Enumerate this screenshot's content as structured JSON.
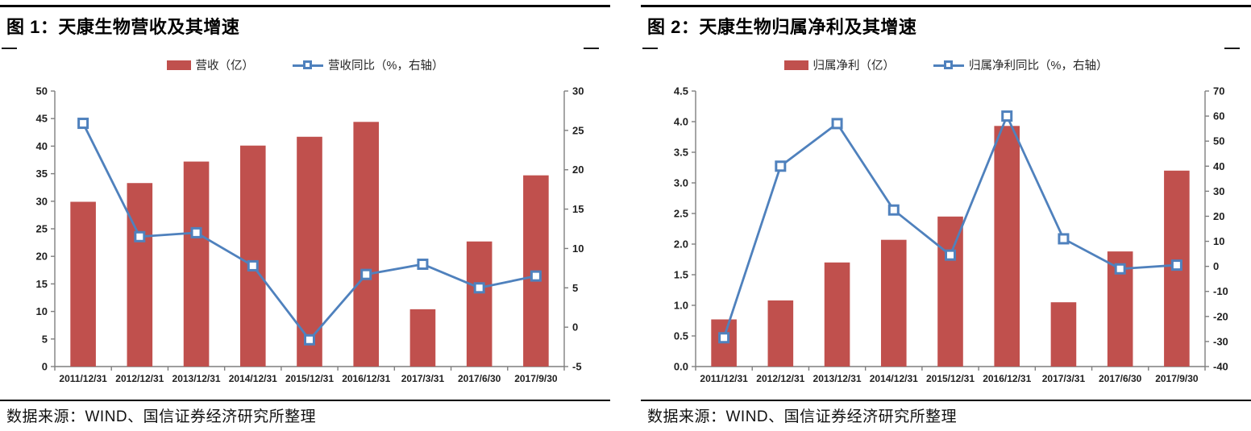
{
  "colors": {
    "bar": "#C0504D",
    "line": "#4F81BD",
    "marker_fill": "#FFFFFF",
    "axis_line": "#7F7F7F",
    "tick_text": "#1f1f1f",
    "rule": "#000000"
  },
  "panels": [
    {
      "title": "图 1：天康生物营收及其增速",
      "legend": {
        "bar": "营收（亿）",
        "line": "营收同比（%，右轴）"
      },
      "source": "数据来源：WIND、国信证券经济研究所整理"
    },
    {
      "title": "图 2：天康生物归属净利及其增速",
      "legend": {
        "bar": "归属净利（亿）",
        "line": "归属净利同比（%，右轴）"
      },
      "source": "数据来源：WIND、国信证券经济研究所整理"
    }
  ],
  "chart_data": [
    {
      "type": "bar",
      "subtype": "combo-bar-line",
      "title": "天康生物营收及其增速",
      "categories": [
        "2011/12/31",
        "2012/12/31",
        "2013/12/31",
        "2014/12/31",
        "2015/12/31",
        "2016/12/31",
        "2017/3/31",
        "2017/6/30",
        "2017/9/30"
      ],
      "series": [
        {
          "name": "营收（亿）",
          "type": "bar",
          "axis": "left",
          "values": [
            29.9,
            33.3,
            37.2,
            40.1,
            41.7,
            44.4,
            10.4,
            22.7,
            34.7
          ]
        },
        {
          "name": "营收同比（%，右轴）",
          "type": "line",
          "axis": "right",
          "values": [
            25.9,
            11.5,
            12.0,
            7.8,
            -1.6,
            6.7,
            8.0,
            5.0,
            6.5
          ]
        }
      ],
      "left_axis": {
        "min": 0,
        "max": 50,
        "step": 5,
        "decimals": 0
      },
      "right_axis": {
        "min": -5,
        "max": 30,
        "step": 5,
        "decimals": 0
      },
      "grid": false,
      "legend_position": "top"
    },
    {
      "type": "bar",
      "subtype": "combo-bar-line",
      "title": "天康生物归属净利及其增速",
      "categories": [
        "2011/12/31",
        "2012/12/31",
        "2013/12/31",
        "2014/12/31",
        "2015/12/31",
        "2016/12/31",
        "2017/3/31",
        "2017/6/30",
        "2017/9/30"
      ],
      "series": [
        {
          "name": "归属净利（亿）",
          "type": "bar",
          "axis": "left",
          "values": [
            0.77,
            1.08,
            1.7,
            2.07,
            2.45,
            3.93,
            1.05,
            1.88,
            3.2
          ]
        },
        {
          "name": "归属净利同比（%，右轴）",
          "type": "line",
          "axis": "right",
          "values": [
            -28.5,
            40.0,
            57.0,
            22.5,
            4.5,
            60.0,
            11.0,
            -1.0,
            0.5
          ]
        }
      ],
      "left_axis": {
        "min": 0,
        "max": 4.5,
        "step": 0.5,
        "decimals": 1
      },
      "right_axis": {
        "min": -40,
        "max": 70,
        "step": 10,
        "decimals": 0
      },
      "grid": false,
      "legend_position": "top"
    }
  ]
}
